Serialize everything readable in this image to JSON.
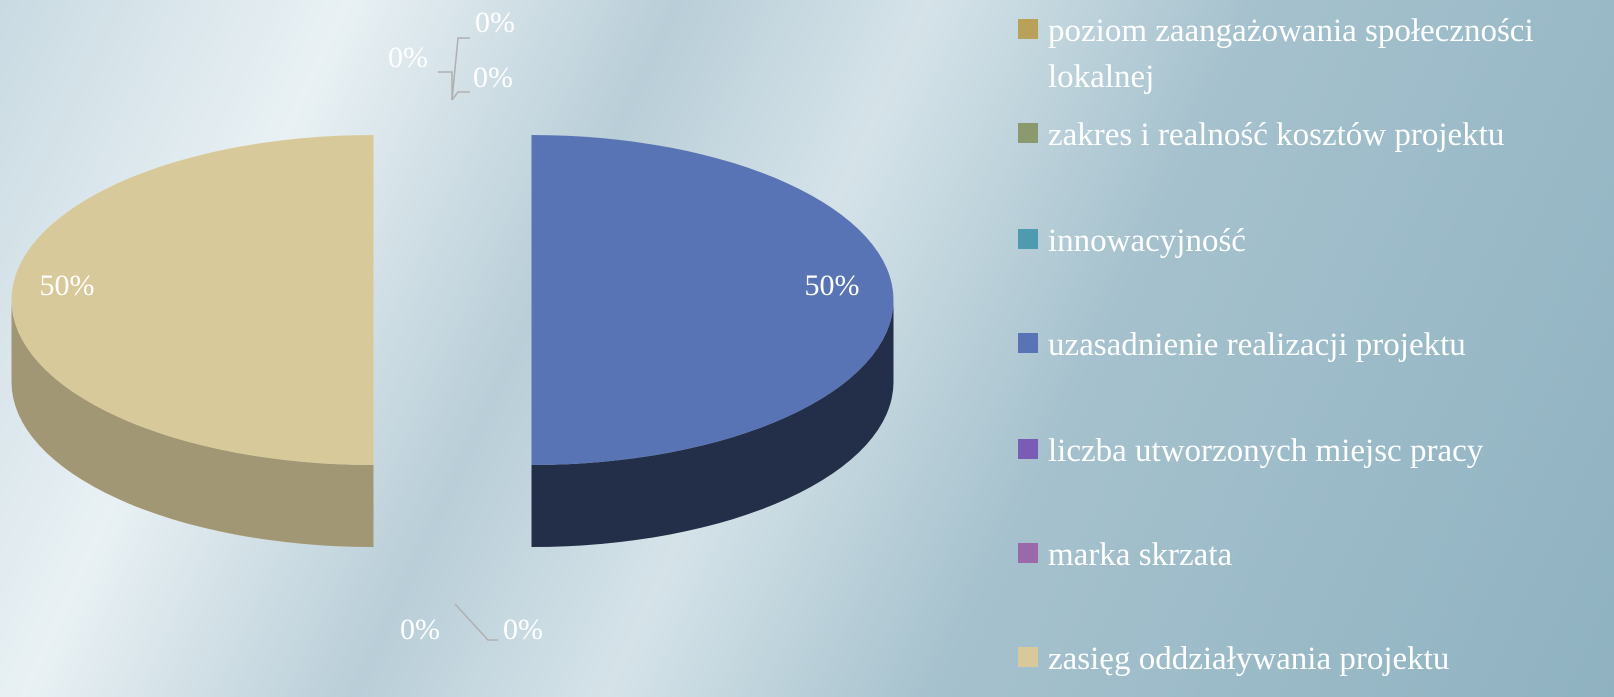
{
  "chart_data": {
    "type": "pie3d",
    "categories": [
      "poziom zaangażowania społeczności lokalnej",
      "zakres i realność kosztów projektu",
      "innowacyjność",
      "uzasadnienie realizacji projektu",
      "liczba utworzonych miejsc pracy",
      "marka skrzata",
      "zasięg oddziaływania projektu"
    ],
    "values": [
      0,
      0,
      0,
      50,
      0,
      0,
      50
    ],
    "value_labels": [
      "0%",
      "0%",
      "0%",
      "50%",
      "0%",
      "0%",
      "50%"
    ],
    "colors": [
      "#b8a25a",
      "#8a9a6e",
      "#4e9bb0",
      "#5874b5",
      "#7a5cb5",
      "#9a6aa8",
      "#d8c99a"
    ],
    "legend": "right"
  }
}
